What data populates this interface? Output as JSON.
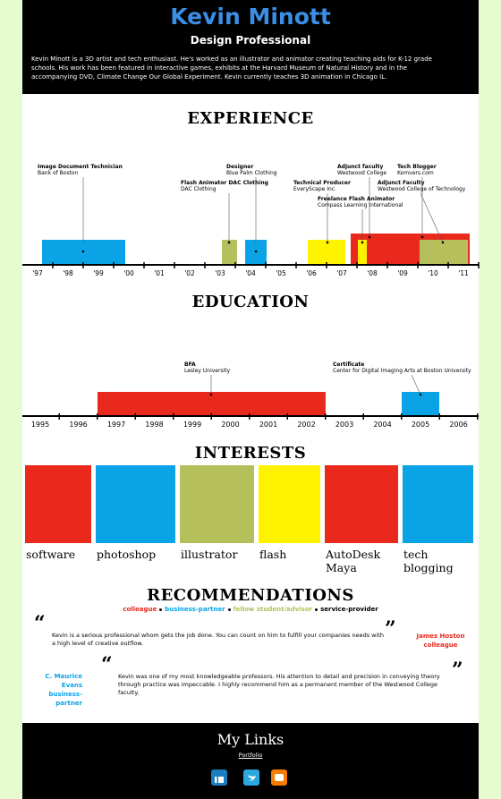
{
  "header": {
    "name": "Kevin Minott",
    "subtitle": "Design Professional",
    "bio": "Kevin Minott is a 3D artist and tech enthusiast. He's worked as an illustrator and animator creating teaching aids for K-12 grade schools. His work has been featured in interactive games, exhibits at the Harvard Museum of Natural History and in the accompanying DVD, Climate Change Our Global Experiment. Kevin currently teaches 3D animation in Chicago IL."
  },
  "experience": {
    "title": "EXPERIENCE",
    "years": [
      "'97",
      "'98",
      "'99",
      "'00",
      "'01",
      "'02",
      "'03",
      "'04",
      "'05",
      "'06",
      "'07",
      "'08",
      "'09",
      "'10",
      "'11"
    ],
    "items": [
      {
        "title": "Image Document Technician",
        "org": "Bank of Boston"
      },
      {
        "title": "Designer",
        "org": "Blue Palm Clothing"
      },
      {
        "title": "Flash Animator DAC Clothing",
        "org": "DAC Clothing"
      },
      {
        "title": "Technical Producer",
        "org": "EveryScape Inc."
      },
      {
        "title": "Adjunct faculty",
        "org": "Westwood College"
      },
      {
        "title": "Freelance Flash Animator",
        "org": "Compass Learning International"
      },
      {
        "title": "Tech Blogger",
        "org": "Komvers.com"
      },
      {
        "title": "Adjunct Faculty",
        "org": "Westwood College of Technology"
      }
    ]
  },
  "education": {
    "title": "EDUCATION",
    "years": [
      "1995",
      "1996",
      "1997",
      "1998",
      "1999",
      "2000",
      "2001",
      "2002",
      "2003",
      "2004",
      "2005",
      "2006"
    ],
    "items": [
      {
        "title": "BFA",
        "org": "Lesley University"
      },
      {
        "title": "Certificate",
        "org": "Center for Digital Imaging Arts at Boston University"
      }
    ]
  },
  "interests": {
    "title": "INTERESTS",
    "items": [
      "software",
      "photoshop",
      "illustrator",
      "flash",
      "AutoDesk Maya",
      "tech blogging"
    ]
  },
  "recommendations": {
    "title": "RECOMMENDATIONS",
    "legend": [
      "colleague",
      "business-partner",
      "fellow student/advisor",
      "service-provider"
    ],
    "quote_marks": [
      "“",
      "”"
    ],
    "items": [
      {
        "quote": "Kevin is a serious professional whom gets the job done. You can count on him to fulfill your companies needs with a high level of creative outflow.",
        "name": "James Hoston",
        "role": "colleague"
      },
      {
        "quote": "Kevin was one of my most knowledgeable professors. His attention to detail and precision in conveying theory through practice was impeccable. I highly recommend him as a permanent member of the Westwood College faculty.",
        "name": "C. Maurice Evans",
        "role": "business-partner"
      }
    ]
  },
  "footer": {
    "title": "My Links",
    "link": "Portfolio"
  }
}
